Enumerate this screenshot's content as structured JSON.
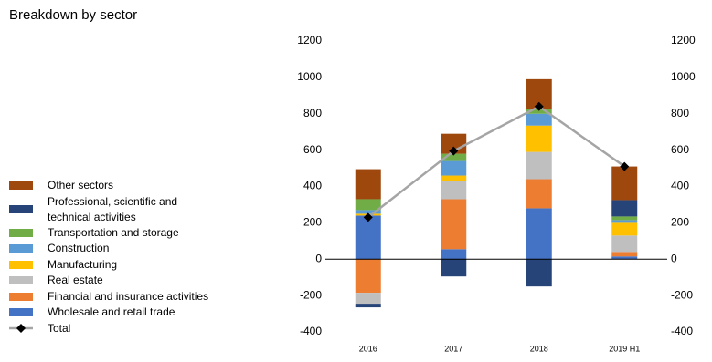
{
  "chart_data": {
    "type": "bar",
    "stacked": true,
    "title": "Breakdown by sector",
    "categories": [
      "2016",
      "2017",
      "2018",
      "2019 H1"
    ],
    "series": [
      {
        "name": "Wholesale and retail trade",
        "color": "#4472c4",
        "values": [
          240,
          55,
          280,
          15
        ]
      },
      {
        "name": "Financial and insurance activities",
        "color": "#ed7d31",
        "values": [
          -185,
          275,
          160,
          25
        ]
      },
      {
        "name": "Real estate",
        "color": "#bfbfbf",
        "values": [
          -60,
          100,
          150,
          90
        ]
      },
      {
        "name": "Manufacturing",
        "color": "#ffc000",
        "values": [
          10,
          30,
          145,
          70
        ]
      },
      {
        "name": "Construction",
        "color": "#5b9bd5",
        "values": [
          20,
          80,
          65,
          15
        ]
      },
      {
        "name": "Transportation and storage",
        "color": "#70ad47",
        "values": [
          60,
          40,
          25,
          20
        ]
      },
      {
        "name": "Professional, scientific and technical activities",
        "color": "#264478",
        "values": [
          -20,
          -95,
          -150,
          90
        ]
      },
      {
        "name": "Other sectors",
        "color": "#9e480e",
        "values": [
          165,
          110,
          165,
          185
        ]
      },
      {
        "name": "Total",
        "type": "line",
        "color": "#a5a5a5",
        "marker_color": "#000000",
        "values": [
          230,
          595,
          840,
          510
        ]
      }
    ],
    "ylim": [
      -400,
      1200
    ],
    "yticks": [
      -400,
      -200,
      0,
      200,
      400,
      600,
      800,
      1000,
      1200
    ],
    "y2lim": [
      -400,
      1200
    ],
    "y2ticks": [
      -400,
      -200,
      0,
      200,
      400,
      600,
      800,
      1000,
      1200
    ],
    "legend": "left"
  }
}
